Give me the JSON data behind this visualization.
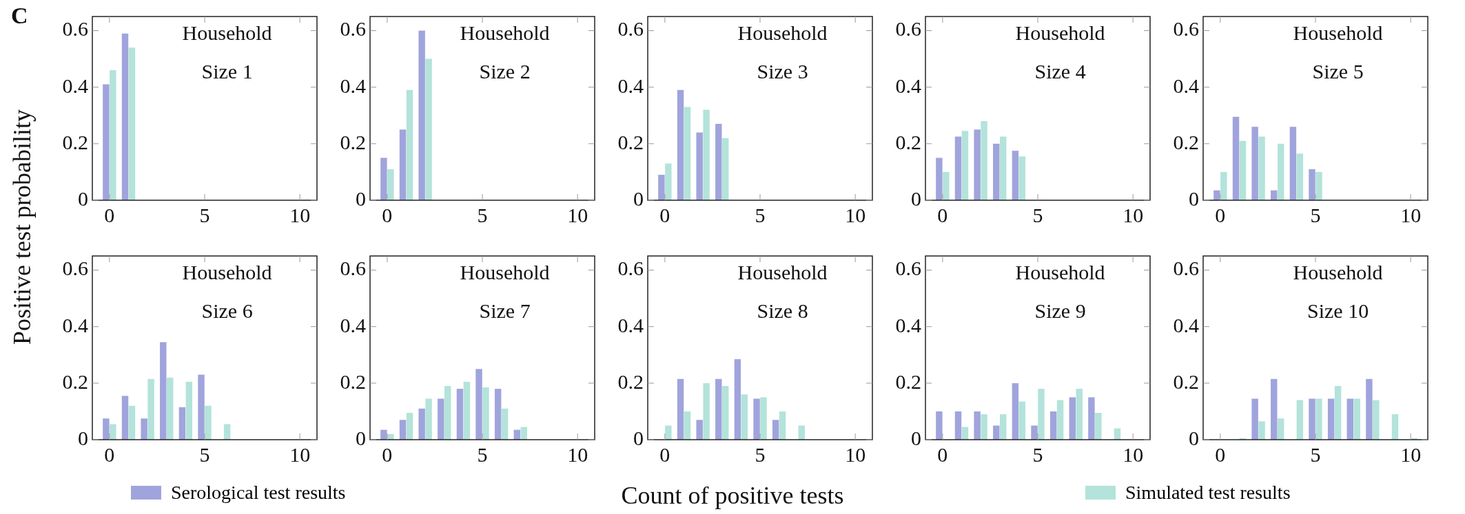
{
  "chart_data": [
    {
      "type": "bar",
      "title": "Household\nSize 1",
      "ylabel": "Positive test probability",
      "annotations": [
        "C"
      ],
      "x": [
        0,
        1,
        2,
        3,
        4,
        5,
        6,
        7,
        8,
        9,
        10
      ],
      "xlim": [
        -0.9,
        10.9
      ],
      "xticks": [
        0,
        5,
        10
      ],
      "ylim": [
        0,
        0.65
      ],
      "yticks": [
        0,
        0.2,
        0.4,
        0.6
      ],
      "series": [
        {
          "color": "#a0a4dc",
          "values": [
            0.41,
            0.59,
            0,
            0,
            0,
            0,
            0,
            0,
            0,
            0,
            0
          ]
        },
        {
          "color": "#b3e3da",
          "values": [
            0.46,
            0.54,
            0,
            0,
            0,
            0,
            0,
            0,
            0,
            0,
            0
          ]
        }
      ]
    },
    {
      "type": "bar",
      "title": "Household\nSize 2",
      "x": [
        0,
        1,
        2,
        3,
        4,
        5,
        6,
        7,
        8,
        9,
        10
      ],
      "xlim": [
        -0.9,
        10.9
      ],
      "xticks": [
        0,
        5,
        10
      ],
      "ylim": [
        0,
        0.65
      ],
      "yticks": [
        0,
        0.2,
        0.4,
        0.6
      ],
      "series": [
        {
          "color": "#a0a4dc",
          "values": [
            0.15,
            0.25,
            0.6,
            0,
            0,
            0,
            0,
            0,
            0,
            0,
            0
          ]
        },
        {
          "color": "#b3e3da",
          "values": [
            0.11,
            0.39,
            0.5,
            0,
            0,
            0,
            0,
            0,
            0,
            0,
            0
          ]
        }
      ]
    },
    {
      "type": "bar",
      "title": "Household\nSize 3",
      "x": [
        0,
        1,
        2,
        3,
        4,
        5,
        6,
        7,
        8,
        9,
        10
      ],
      "xlim": [
        -0.9,
        10.9
      ],
      "xticks": [
        0,
        5,
        10
      ],
      "ylim": [
        0,
        0.65
      ],
      "yticks": [
        0,
        0.2,
        0.4,
        0.6
      ],
      "series": [
        {
          "color": "#a0a4dc",
          "values": [
            0.09,
            0.39,
            0.24,
            0.27,
            0,
            0,
            0,
            0,
            0,
            0,
            0
          ]
        },
        {
          "color": "#b3e3da",
          "values": [
            0.13,
            0.33,
            0.32,
            0.22,
            0,
            0,
            0,
            0,
            0,
            0,
            0
          ]
        }
      ]
    },
    {
      "type": "bar",
      "title": "Household\nSize 4",
      "x": [
        0,
        1,
        2,
        3,
        4,
        5,
        6,
        7,
        8,
        9,
        10
      ],
      "xlim": [
        -0.9,
        10.9
      ],
      "xticks": [
        0,
        5,
        10
      ],
      "ylim": [
        0,
        0.65
      ],
      "yticks": [
        0,
        0.2,
        0.4,
        0.6
      ],
      "series": [
        {
          "color": "#a0a4dc",
          "values": [
            0.15,
            0.225,
            0.25,
            0.2,
            0.175,
            0,
            0,
            0,
            0,
            0,
            0
          ]
        },
        {
          "color": "#b3e3da",
          "values": [
            0.1,
            0.245,
            0.28,
            0.225,
            0.155,
            0,
            0,
            0,
            0,
            0,
            0
          ]
        }
      ]
    },
    {
      "type": "bar",
      "title": "Household\nSize 5",
      "x": [
        0,
        1,
        2,
        3,
        4,
        5,
        6,
        7,
        8,
        9,
        10
      ],
      "xlim": [
        -0.9,
        10.9
      ],
      "xticks": [
        0,
        5,
        10
      ],
      "ylim": [
        0,
        0.65
      ],
      "yticks": [
        0,
        0.2,
        0.4,
        0.6
      ],
      "series": [
        {
          "color": "#a0a4dc",
          "values": [
            0.035,
            0.295,
            0.26,
            0.035,
            0.26,
            0.11,
            0,
            0,
            0,
            0,
            0
          ]
        },
        {
          "color": "#b3e3da",
          "values": [
            0.1,
            0.21,
            0.225,
            0.2,
            0.165,
            0.1,
            0,
            0,
            0,
            0,
            0
          ]
        }
      ]
    },
    {
      "type": "bar",
      "title": "Household\nSize 6",
      "x": [
        0,
        1,
        2,
        3,
        4,
        5,
        6,
        7,
        8,
        9,
        10
      ],
      "xlim": [
        -0.9,
        10.9
      ],
      "xticks": [
        0,
        5,
        10
      ],
      "ylim": [
        0,
        0.65
      ],
      "yticks": [
        0,
        0.2,
        0.4,
        0.6
      ],
      "series": [
        {
          "color": "#a0a4dc",
          "values": [
            0.075,
            0.155,
            0.075,
            0.345,
            0.115,
            0.23,
            0,
            0,
            0,
            0,
            0
          ]
        },
        {
          "color": "#b3e3da",
          "values": [
            0.055,
            0.12,
            0.215,
            0.22,
            0.205,
            0.12,
            0.055,
            0,
            0,
            0,
            0
          ]
        }
      ]
    },
    {
      "type": "bar",
      "title": "Household\nSize 7",
      "x": [
        0,
        1,
        2,
        3,
        4,
        5,
        6,
        7,
        8,
        9,
        10
      ],
      "xlim": [
        -0.9,
        10.9
      ],
      "xticks": [
        0,
        5,
        10
      ],
      "ylim": [
        0,
        0.65
      ],
      "yticks": [
        0,
        0.2,
        0.4,
        0.6
      ],
      "series": [
        {
          "color": "#a0a4dc",
          "values": [
            0.035,
            0.07,
            0.11,
            0.145,
            0.18,
            0.25,
            0.18,
            0.035,
            0,
            0,
            0
          ]
        },
        {
          "color": "#b3e3da",
          "values": [
            0.02,
            0.095,
            0.145,
            0.19,
            0.205,
            0.185,
            0.11,
            0.045,
            0,
            0,
            0
          ]
        }
      ]
    },
    {
      "type": "bar",
      "title": "Household\nSize 8",
      "xlabel": "Count of positive tests",
      "legend": "bottom",
      "x": [
        0,
        1,
        2,
        3,
        4,
        5,
        6,
        7,
        8,
        9,
        10
      ],
      "xlim": [
        -0.9,
        10.9
      ],
      "xticks": [
        0,
        5,
        10
      ],
      "ylim": [
        0,
        0.65
      ],
      "yticks": [
        0,
        0.2,
        0.4,
        0.6
      ],
      "series": [
        {
          "name": "Serological test results",
          "color": "#a0a4dc",
          "values": [
            0,
            0.215,
            0.07,
            0.215,
            0.285,
            0.145,
            0.07,
            0,
            0,
            0,
            0
          ]
        },
        {
          "name": "Simulated test results",
          "color": "#b3e3da",
          "values": [
            0.05,
            0.1,
            0.2,
            0.19,
            0.16,
            0.15,
            0.1,
            0.05,
            0,
            0,
            0
          ]
        }
      ]
    },
    {
      "type": "bar",
      "title": "Household\nSize 9",
      "x": [
        0,
        1,
        2,
        3,
        4,
        5,
        6,
        7,
        8,
        9,
        10
      ],
      "xlim": [
        -0.9,
        10.9
      ],
      "xticks": [
        0,
        5,
        10
      ],
      "ylim": [
        0,
        0.65
      ],
      "yticks": [
        0,
        0.2,
        0.4,
        0.6
      ],
      "series": [
        {
          "color": "#a0a4dc",
          "values": [
            0.1,
            0.1,
            0.1,
            0.05,
            0.2,
            0.05,
            0.1,
            0.15,
            0.15,
            0,
            0
          ]
        },
        {
          "color": "#b3e3da",
          "values": [
            0,
            0.045,
            0.09,
            0.09,
            0.135,
            0.18,
            0.14,
            0.18,
            0.095,
            0.04,
            0
          ]
        }
      ]
    },
    {
      "type": "bar",
      "title": "Household\nSize 10",
      "x": [
        0,
        1,
        2,
        3,
        4,
        5,
        6,
        7,
        8,
        9,
        10
      ],
      "xlim": [
        -0.9,
        10.9
      ],
      "xticks": [
        0,
        5,
        10
      ],
      "ylim": [
        0,
        0.65
      ],
      "yticks": [
        0,
        0.2,
        0.4,
        0.6
      ],
      "series": [
        {
          "color": "#a0a4dc",
          "values": [
            0,
            0,
            0.145,
            0.215,
            0,
            0.145,
            0.145,
            0.145,
            0.215,
            0,
            0
          ]
        },
        {
          "color": "#b3e3da",
          "values": [
            0,
            0.005,
            0.065,
            0.075,
            0.14,
            0.145,
            0.19,
            0.145,
            0.14,
            0.09,
            0.005
          ]
        }
      ]
    }
  ]
}
